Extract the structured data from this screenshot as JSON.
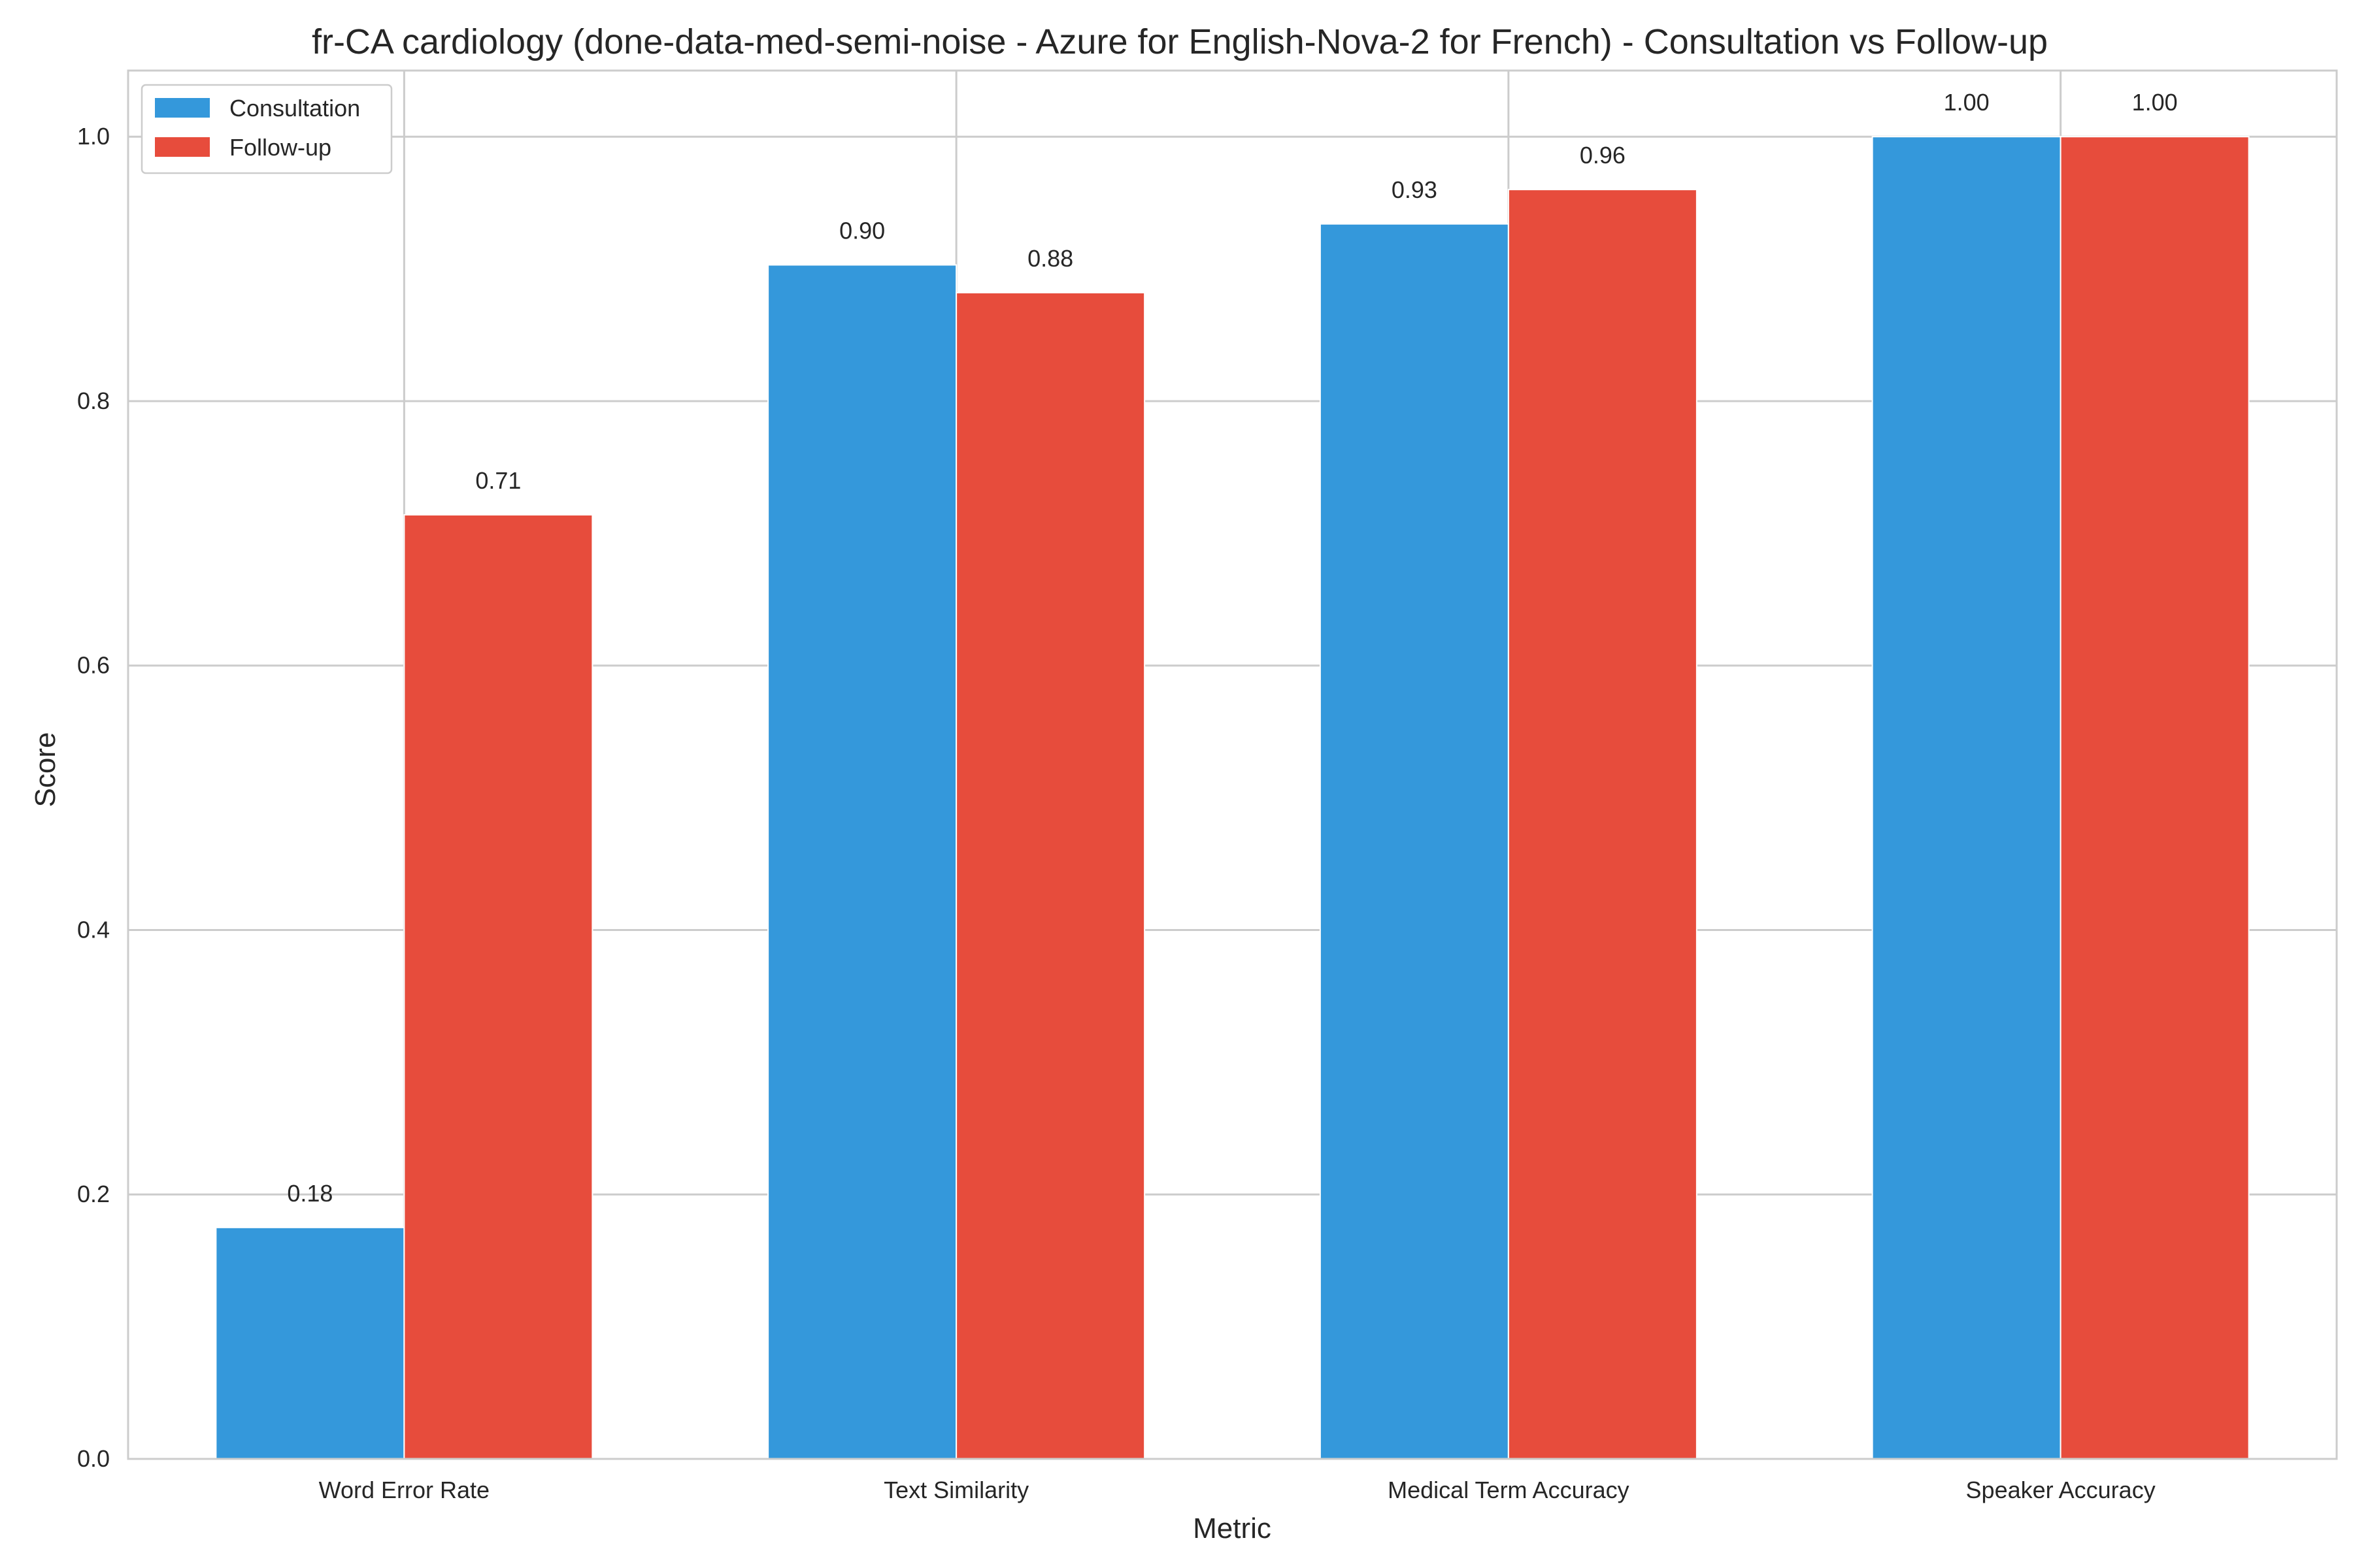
{
  "chart_data": {
    "type": "bar",
    "title": "fr-CA cardiology (done-data-med-semi-noise - Azure for English-Nova-2 for French) - Consultation vs Follow-up",
    "xlabel": "Metric",
    "ylabel": "Score",
    "categories": [
      "Word Error Rate",
      "Text Similarity",
      "Medical Term Accuracy",
      "Speaker Accuracy"
    ],
    "series": [
      {
        "name": "Consultation",
        "color": "#3498db",
        "values": [
          0.175,
          0.903,
          0.934,
          1.0
        ],
        "labels": [
          "0.18",
          "0.90",
          "0.93",
          "1.00"
        ]
      },
      {
        "name": "Follow-up",
        "color": "#e74c3c",
        "values": [
          0.714,
          0.882,
          0.96,
          1.0
        ],
        "labels": [
          "0.71",
          "0.88",
          "0.96",
          "1.00"
        ]
      }
    ],
    "ylim": [
      0,
      1.05
    ],
    "yticks": [
      0.0,
      0.2,
      0.4,
      0.6,
      0.8,
      1.0
    ],
    "ytick_labels": [
      "0.0",
      "0.2",
      "0.4",
      "0.6",
      "0.8",
      "1.0"
    ],
    "grid": true,
    "legend_position": "top-left"
  }
}
